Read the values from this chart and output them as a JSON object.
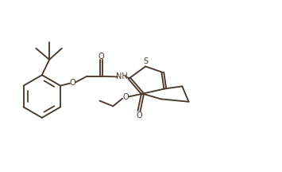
{
  "bg": "#ffffff",
  "lc": "#4a3a2e",
  "lw": 1.35,
  "fs": 7.0,
  "xlim": [
    0,
    10
  ],
  "ylim": [
    0,
    6
  ],
  "figsize": [
    3.55,
    2.16
  ],
  "dpi": 100
}
